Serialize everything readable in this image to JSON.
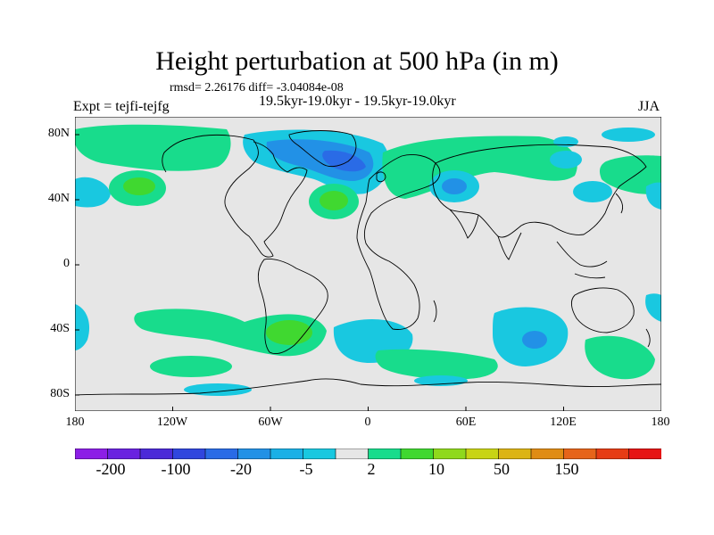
{
  "title": "Height perturbation at 500 hPa (in m)",
  "stats": "rmsd= 2.26176 diff= -3.04084e-08",
  "experiment": "Expt = tejfi-tejfg",
  "period": "19.5kyr-19.0kyr - 19.5kyr-19.0kyr",
  "season": "JJA",
  "lat_labels": [
    "80N",
    "40N",
    "0",
    "40S",
    "80S"
  ],
  "lon_labels": [
    "180",
    "120W",
    "60W",
    "0",
    "60E",
    "120E",
    "180"
  ],
  "colorbar": {
    "colors": [
      "#8c1ee6",
      "#6a22e0",
      "#4b2ad8",
      "#3046de",
      "#2a6be6",
      "#2291e6",
      "#1ab0e6",
      "#19c8e0",
      "#e6e6e6",
      "#18dc8c",
      "#40d830",
      "#8fd91c",
      "#c8d414",
      "#dcb414",
      "#e08c14",
      "#e6641a",
      "#e63c14",
      "#e61414"
    ],
    "labels": [
      "-200",
      "-100",
      "-20",
      "-5",
      "2",
      "10",
      "50",
      "150"
    ]
  }
}
